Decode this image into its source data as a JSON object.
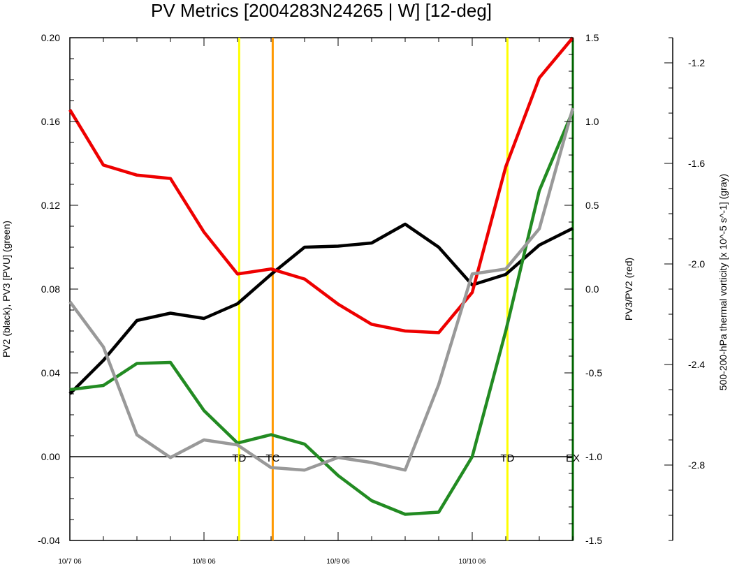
{
  "chart_data": {
    "type": "line",
    "title": "PV Metrics [2004283N24265 | W] [12-deg]",
    "x": {
      "ticks": [
        {
          "t": 0,
          "label": "10/7 06"
        },
        {
          "t": 4,
          "label": "10/8 06"
        },
        {
          "t": 8,
          "label": "10/9 06"
        },
        {
          "t": 12,
          "label": "10/10 06"
        }
      ],
      "range": [
        0,
        15
      ]
    },
    "y_left": {
      "label": "PV2 (black), PV3 [PVU] (green)",
      "range": [
        -0.04,
        0.2
      ],
      "ticks": [
        "0.20",
        "0.16",
        "0.12",
        "0.08",
        "0.04",
        "0.00",
        "-0.04"
      ]
    },
    "y_right": {
      "label": "PV3/PV2 (red)",
      "range": [
        -1.5,
        1.5
      ],
      "ticks": [
        "1.5",
        "1.0",
        "0.5",
        "0.0",
        "-0.5",
        "-1.0",
        "-1.5"
      ]
    },
    "y_far_right": {
      "label": "500-200-hPa thermal vorticity [x 10^-5 s^-1] (gray)",
      "range": [
        -3.1,
        -1.1
      ],
      "ticks": [
        "-1.2",
        "-1.6",
        "-2.0",
        "-2.4",
        "-2.8"
      ]
    },
    "x_values": [
      0,
      1,
      2,
      3,
      4,
      5,
      6,
      7,
      8,
      9,
      10,
      11,
      12,
      13,
      14,
      15
    ],
    "series": [
      {
        "axis": "left",
        "color": "#000000",
        "values": [
          0.03,
          0.046,
          0.065,
          0.0685,
          0.066,
          0.073,
          0.087,
          0.1,
          0.1005,
          0.102,
          0.111,
          0.1,
          0.082,
          0.087,
          0.101,
          0.109
        ]
      },
      {
        "axis": "left",
        "color": "#228B22",
        "values": [
          0.032,
          0.034,
          0.0445,
          0.045,
          0.022,
          0.0065,
          0.0105,
          0.006,
          -0.009,
          -0.021,
          -0.0275,
          -0.0265,
          0.0,
          0.06,
          0.127,
          0.165
        ]
      },
      {
        "axis": "right",
        "color": "#ee0000",
        "values": [
          1.07,
          0.74,
          0.68,
          0.66,
          0.34,
          0.09,
          0.12,
          0.06,
          -0.09,
          -0.21,
          -0.25,
          -0.26,
          -0.02,
          0.73,
          1.26,
          1.5
        ]
      },
      {
        "axis": "far_right",
        "color": "#999999",
        "values": [
          -2.15,
          -2.33,
          -2.68,
          -2.77,
          -2.7,
          -2.72,
          -2.81,
          -2.82,
          -2.77,
          -2.79,
          -2.82,
          -2.48,
          -2.04,
          -2.02,
          -1.86,
          -1.38
        ]
      }
    ],
    "events": [
      {
        "t": 5.05,
        "label": "TD",
        "color": "#ffff00"
      },
      {
        "t": 6.05,
        "label": "TC",
        "color": "#ff9900"
      },
      {
        "t": 13.05,
        "label": "TD",
        "color": "#ffff00"
      },
      {
        "t": 15.0,
        "label": "EX",
        "color": "#006400"
      }
    ],
    "grid": false
  }
}
